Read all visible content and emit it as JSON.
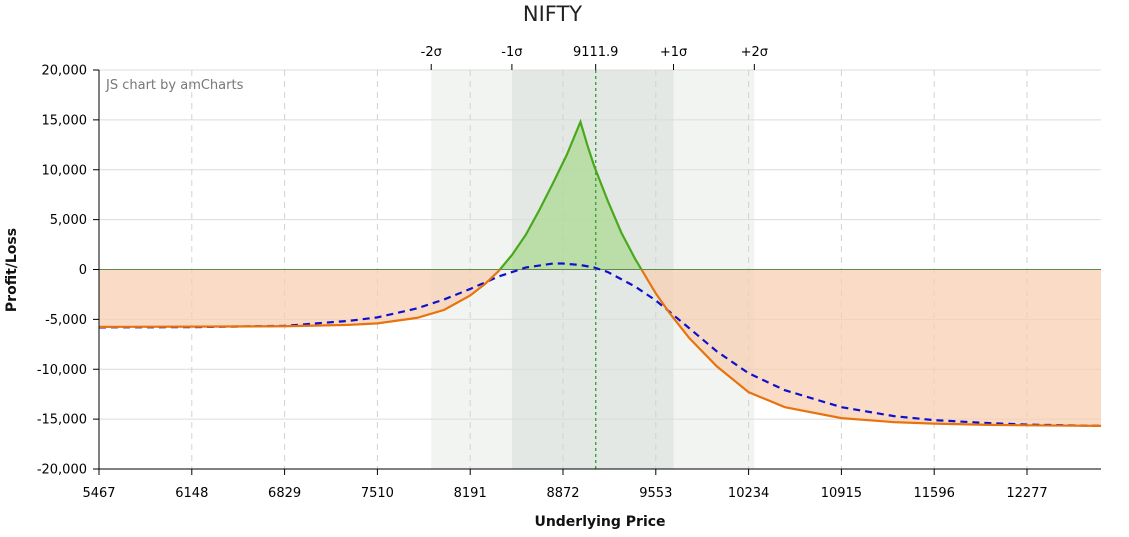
{
  "chart_data": {
    "type": "line",
    "title": "NIFTY",
    "xlabel": "Underlying Price",
    "ylabel": "Profit/Loss",
    "credit": "JS chart by amCharts",
    "xlim": [
      5467,
      12820
    ],
    "ylim": [
      -20000,
      20000
    ],
    "x_ticks": [
      5467,
      6148,
      6829,
      7510,
      8191,
      8872,
      9553,
      10234,
      10915,
      11596,
      12277
    ],
    "y_ticks": [
      20000,
      15000,
      10000,
      5000,
      0,
      -5000,
      -10000,
      -15000,
      -20000
    ],
    "y_tick_labels": [
      "20,000",
      "15,000",
      "10,000",
      "5,000",
      "0",
      "-5,000",
      "-10,000",
      "-15,000",
      "-20,000"
    ],
    "current_price": 9111.9,
    "current_price_label": "9111.9",
    "sigma_bands": [
      {
        "label": "-2σ",
        "x": 7905
      },
      {
        "label": "-1σ",
        "x": 8497
      },
      {
        "label": "+1σ",
        "x": 9683
      },
      {
        "label": "+2σ",
        "x": 10276
      }
    ],
    "series": [
      {
        "name": "Expiry P/L",
        "style": "solid",
        "color": "#e8730e",
        "profit_color": "#4aa81d",
        "x": [
          5467,
          6148,
          6829,
          7300,
          7510,
          7800,
          8000,
          8191,
          8300,
          8400,
          8500,
          8600,
          8700,
          8800,
          8900,
          9000,
          9050,
          9100,
          9200,
          9300,
          9400,
          9500,
          9553,
          9650,
          9800,
          10000,
          10234,
          10500,
          10915,
          11300,
          11596,
          12000,
          12277,
          12820
        ],
        "values": [
          -5750,
          -5730,
          -5690,
          -5550,
          -5400,
          -4850,
          -4050,
          -2600,
          -1450,
          -150,
          1500,
          3500,
          6000,
          8700,
          11500,
          14800,
          12500,
          10400,
          6900,
          3700,
          1100,
          -1200,
          -2400,
          -4300,
          -6900,
          -9700,
          -12300,
          -13800,
          -14900,
          -15300,
          -15450,
          -15580,
          -15620,
          -15680
        ]
      },
      {
        "name": "T+0 P/L",
        "style": "dashed",
        "color": "#1010cc",
        "x": [
          5467,
          6148,
          6829,
          7300,
          7510,
          7800,
          8000,
          8191,
          8400,
          8600,
          8800,
          8872,
          9000,
          9100,
          9200,
          9400,
          9553,
          9800,
          10000,
          10234,
          10500,
          10915,
          11300,
          11596,
          12000,
          12277,
          12820
        ],
        "values": [
          -5800,
          -5780,
          -5650,
          -5150,
          -4800,
          -3900,
          -3000,
          -1950,
          -700,
          200,
          600,
          600,
          450,
          200,
          -250,
          -1700,
          -3100,
          -5900,
          -8200,
          -10400,
          -12100,
          -13800,
          -14700,
          -15100,
          -15400,
          -15550,
          -15680
        ]
      }
    ]
  }
}
